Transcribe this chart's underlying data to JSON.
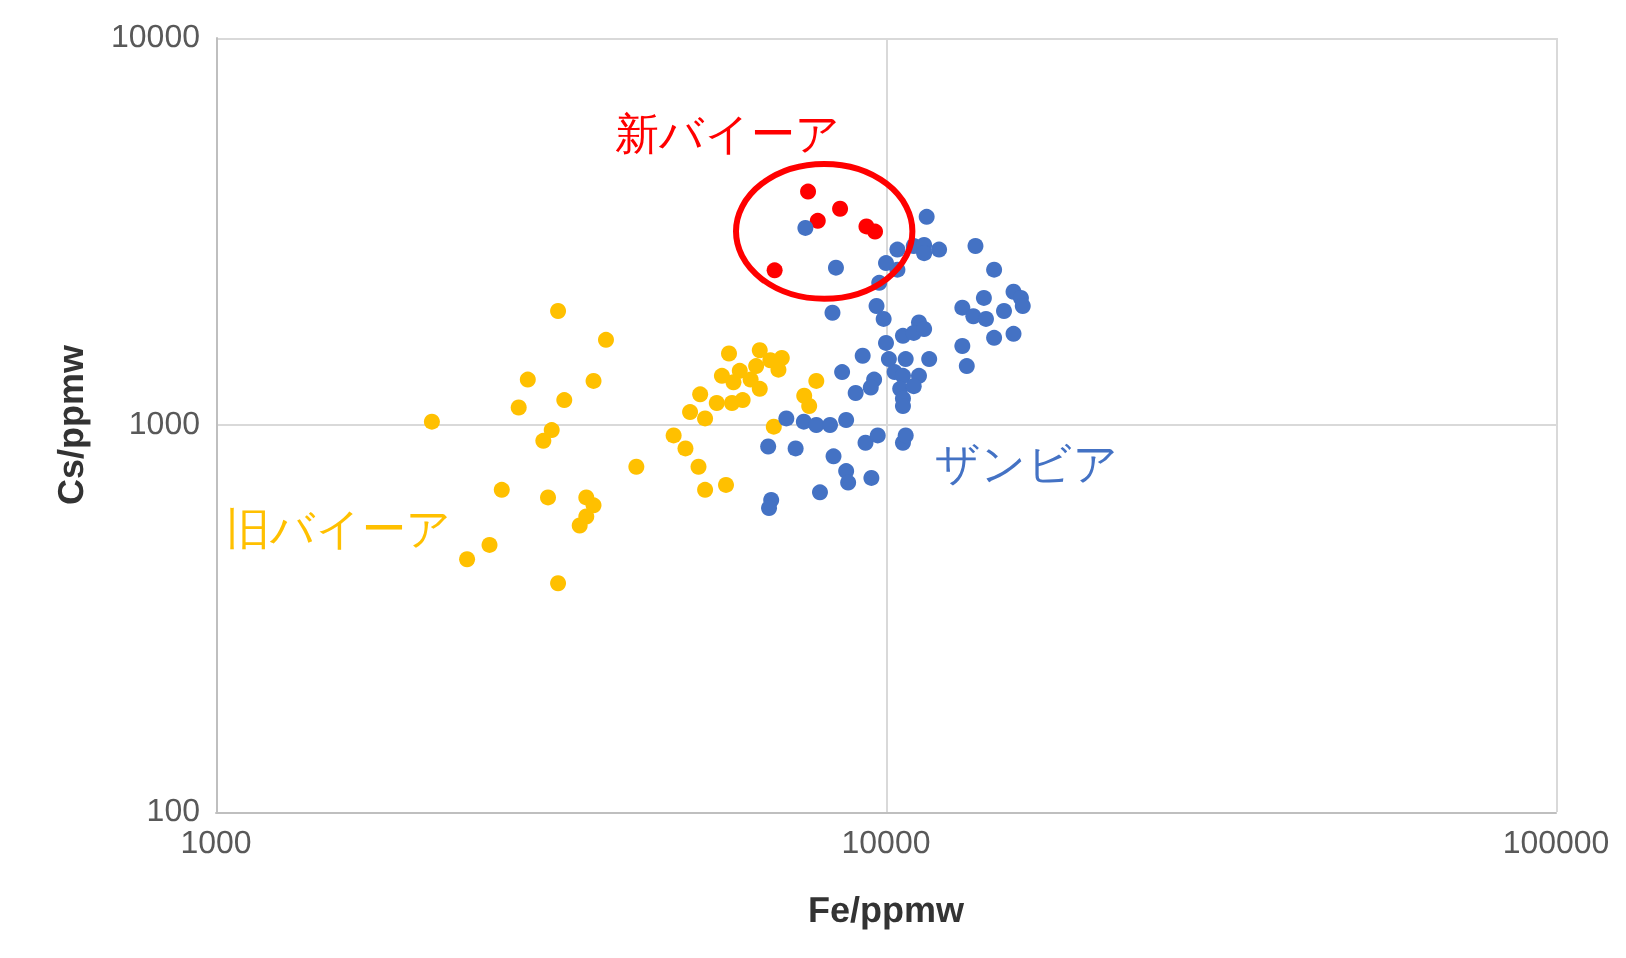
{
  "chart_data": {
    "type": "scatter",
    "xlabel": "Fe/ppmw",
    "ylabel": "Cs/ppmw",
    "log": "xy",
    "grid": true,
    "legend": false,
    "marker": "circle",
    "xlim": [
      1000,
      100000
    ],
    "xticks": [
      1000,
      10000,
      100000
    ],
    "ylim": [
      100,
      10000
    ],
    "yticks": [
      100,
      1000,
      10000
    ],
    "series": [
      {
        "name": "旧バイーア",
        "color": "#ffc000",
        "x": [
          3240,
          3820,
          2920,
          3660,
          3310,
          2840,
          2830,
          2100,
          3170,
          3080,
          2670,
          3130,
          3570,
          3660,
          3570,
          3490,
          2560,
          2370,
          3240,
          4240,
          4820,
          5020,
          5250,
          5370,
          5770,
          5100,
          5370,
          5280,
          5590,
          5890,
          6110,
          5690,
          5920,
          6050,
          6280,
          6480,
          5830,
          6480,
          6400,
          6720,
          6990,
          6910,
          7870,
          7550,
          7680,
          6800
        ],
        "values": [
          1970,
          1660,
          1310,
          1300,
          1160,
          null,
          1110,
          1020,
          970,
          910,
          680,
          650,
          650,
          620,
          580,
          550,
          490,
          450,
          390,
          780,
          940,
          870,
          780,
          680,
          700,
          1080,
          1040,
          1200,
          1140,
          1140,
          1160,
          1340,
          1290,
          1380,
          1310,
          1240,
          1530,
          1560,
          1420,
          1470,
          1490,
          1390,
          1300,
          1190,
          1120,
          990
        ]
      },
      {
        "name": "新バイーア",
        "color": "#ff0000",
        "x": [
          7650,
          8540,
          7910,
          9350,
          9630,
          6820
        ],
        "values": [
          4010,
          3620,
          3370,
          3260,
          3160,
          2510
        ]
      },
      {
        "name": "ザンビア",
        "color": "#4472c4",
        "x": [
          7580,
          8420,
          8320,
          11500,
          10400,
          11000,
          11400,
          11400,
          12000,
          10000,
          10400,
          9770,
          13600,
          14500,
          15500,
          15900,
          16000,
          13000,
          13500,
          14000,
          14100,
          15000,
          14500,
          15500,
          13000,
          13200,
          9680,
          9920,
          11200,
          10600,
          11000,
          11400,
          10000,
          9230,
          10100,
          10700,
          11600,
          8600,
          9600,
          10300,
          10600,
          11200,
          9010,
          9490,
          10500,
          11000,
          10600,
          7100,
          7540,
          7870,
          8250,
          8720,
          6670,
          7330,
          8350,
          8720,
          8780,
          9510,
          7970,
          6740,
          6690,
          9320,
          9720,
          10600,
          10700,
          10600
        ],
        "values": [
          3230,
          2550,
          1950,
          3450,
          2840,
          2900,
          2920,
          2780,
          2840,
          2620,
          2520,
          2330,
          2900,
          2520,
          2210,
          2130,
          2030,
          2010,
          1910,
          2130,
          1880,
          1970,
          1680,
          1720,
          1600,
          1420,
          2030,
          1880,
          1840,
          1700,
          1730,
          1770,
          1630,
          1510,
          1480,
          1480,
          1480,
          1370,
          1310,
          1370,
          1340,
          1340,
          1210,
          1250,
          1240,
          1260,
          1170,
          1040,
          1020,
          1000,
          1000,
          1030,
          880,
          870,
          830,
          760,
          710,
          730,
          670,
          640,
          610,
          900,
          940,
          900,
          940,
          1120
        ]
      }
    ]
  }
}
